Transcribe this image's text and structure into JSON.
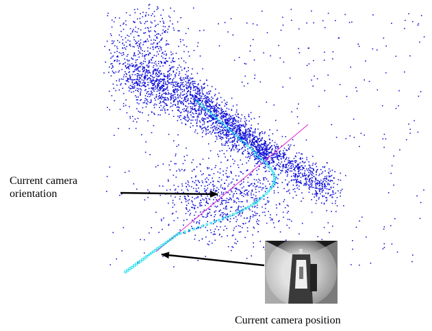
{
  "labels": {
    "orientation_line1": "Current camera",
    "orientation_line2": "orientation",
    "position": "Current camera position"
  },
  "colors": {
    "point_cloud": "#1010d8",
    "trajectory": "#00d8e8",
    "orientation_ray": "#e020c8",
    "arrow": "#000000"
  },
  "icons": {
    "camera_thumbnail": "corridor-camera-frame-thumbnail"
  }
}
